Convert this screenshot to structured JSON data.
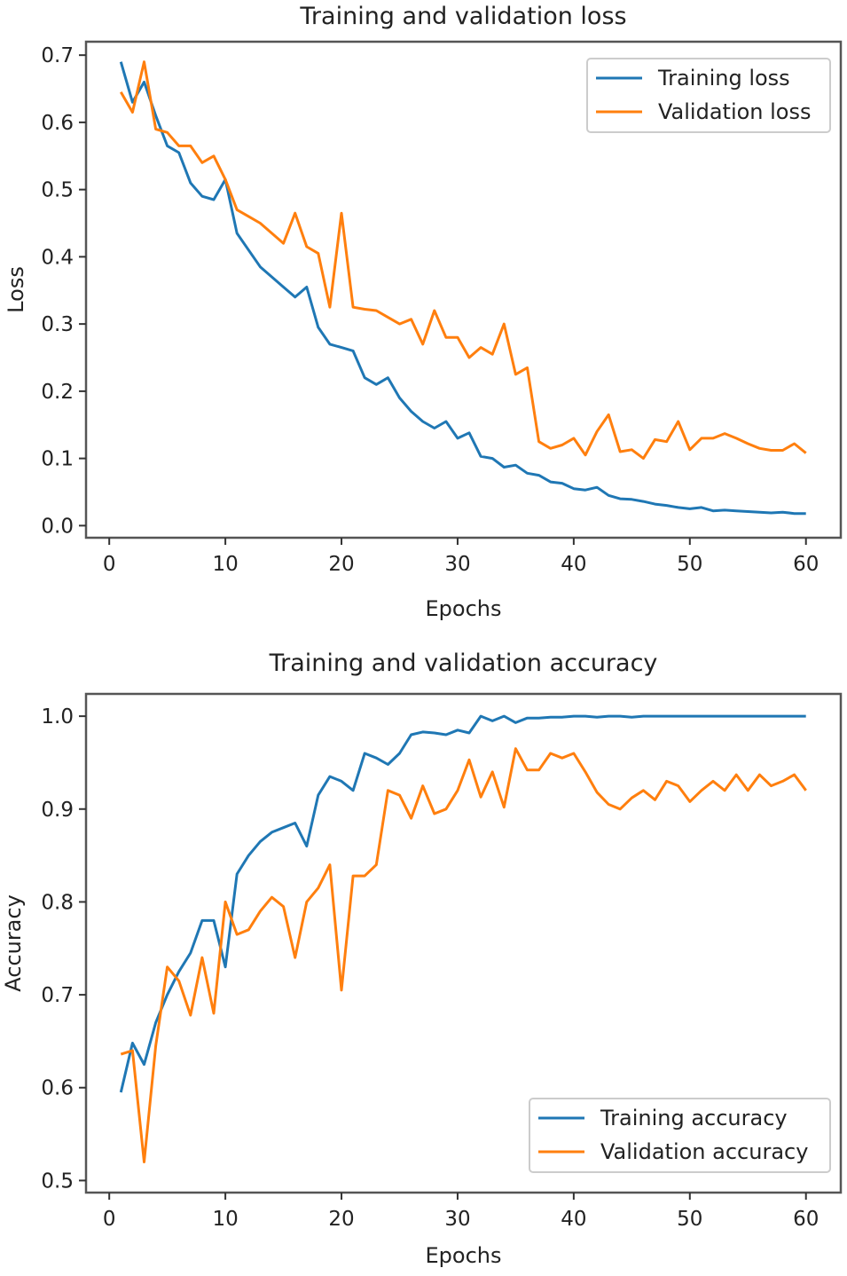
{
  "chart_data": [
    {
      "type": "line",
      "title": "Training and validation loss",
      "xlabel": "Epochs",
      "ylabel": "Loss",
      "xlim": [
        -2,
        63
      ],
      "ylim": [
        -0.018,
        0.72
      ],
      "xticks": [
        0,
        10,
        20,
        30,
        40,
        50,
        60
      ],
      "yticks": [
        0.0,
        0.1,
        0.2,
        0.3,
        0.4,
        0.5,
        0.6,
        0.7
      ],
      "ytick_labels": [
        "0.0",
        "0.1",
        "0.2",
        "0.3",
        "0.4",
        "0.5",
        "0.6",
        "0.7"
      ],
      "grid": false,
      "legend": "top-right",
      "x": [
        1,
        2,
        3,
        4,
        5,
        6,
        7,
        8,
        9,
        10,
        11,
        12,
        13,
        14,
        15,
        16,
        17,
        18,
        19,
        20,
        21,
        22,
        23,
        24,
        25,
        26,
        27,
        28,
        29,
        30,
        31,
        32,
        33,
        34,
        35,
        36,
        37,
        38,
        39,
        40,
        41,
        42,
        43,
        44,
        45,
        46,
        47,
        48,
        49,
        50,
        51,
        52,
        53,
        54,
        55,
        56,
        57,
        58,
        59,
        60
      ],
      "series": [
        {
          "name": "Training loss",
          "color": "#1f77b4",
          "values": [
            0.69,
            0.63,
            0.66,
            0.61,
            0.565,
            0.555,
            0.51,
            0.49,
            0.485,
            0.515,
            0.435,
            0.41,
            0.385,
            0.37,
            0.355,
            0.34,
            0.355,
            0.295,
            0.27,
            0.265,
            0.26,
            0.22,
            0.21,
            0.22,
            0.19,
            0.17,
            0.155,
            0.145,
            0.155,
            0.13,
            0.138,
            0.103,
            0.1,
            0.087,
            0.09,
            0.078,
            0.075,
            0.065,
            0.063,
            0.055,
            0.053,
            0.057,
            0.045,
            0.04,
            0.039,
            0.036,
            0.032,
            0.03,
            0.027,
            0.025,
            0.027,
            0.022,
            0.023,
            0.022,
            0.021,
            0.02,
            0.019,
            0.02,
            0.018,
            0.018
          ]
        },
        {
          "name": "Validation loss",
          "color": "#ff7f0e",
          "values": [
            0.645,
            0.615,
            0.69,
            0.59,
            0.585,
            0.565,
            0.565,
            0.54,
            0.55,
            0.515,
            0.47,
            0.46,
            0.45,
            0.435,
            0.42,
            0.465,
            0.415,
            0.405,
            0.325,
            0.465,
            0.325,
            0.322,
            0.32,
            0.31,
            0.3,
            0.307,
            0.27,
            0.32,
            0.28,
            0.28,
            0.25,
            0.265,
            0.255,
            0.3,
            0.225,
            0.235,
            0.125,
            0.115,
            0.12,
            0.13,
            0.105,
            0.14,
            0.165,
            0.11,
            0.113,
            0.1,
            0.128,
            0.125,
            0.155,
            0.113,
            0.13,
            0.13,
            0.137,
            0.13,
            0.122,
            0.115,
            0.112,
            0.112,
            0.122,
            0.108
          ]
        }
      ]
    },
    {
      "type": "line",
      "title": "Training and validation accuracy",
      "xlabel": "Epochs",
      "ylabel": "Accuracy",
      "xlim": [
        -2,
        63
      ],
      "ylim": [
        0.487,
        1.024
      ],
      "xticks": [
        0,
        10,
        20,
        30,
        40,
        50,
        60
      ],
      "yticks": [
        0.5,
        0.6,
        0.7,
        0.8,
        0.9,
        1.0
      ],
      "ytick_labels": [
        "0.5",
        "0.6",
        "0.7",
        "0.8",
        "0.9",
        "1.0"
      ],
      "grid": false,
      "legend": "bottom-right",
      "x": [
        1,
        2,
        3,
        4,
        5,
        6,
        7,
        8,
        9,
        10,
        11,
        12,
        13,
        14,
        15,
        16,
        17,
        18,
        19,
        20,
        21,
        22,
        23,
        24,
        25,
        26,
        27,
        28,
        29,
        30,
        31,
        32,
        33,
        34,
        35,
        36,
        37,
        38,
        39,
        40,
        41,
        42,
        43,
        44,
        45,
        46,
        47,
        48,
        49,
        50,
        51,
        52,
        53,
        54,
        55,
        56,
        57,
        58,
        59,
        60
      ],
      "series": [
        {
          "name": "Training accuracy",
          "color": "#1f77b4",
          "values": [
            0.595,
            0.648,
            0.625,
            0.67,
            0.7,
            0.725,
            0.745,
            0.78,
            0.78,
            0.73,
            0.83,
            0.85,
            0.865,
            0.875,
            0.88,
            0.885,
            0.86,
            0.915,
            0.935,
            0.93,
            0.92,
            0.96,
            0.955,
            0.948,
            0.96,
            0.98,
            0.983,
            0.982,
            0.98,
            0.985,
            0.982,
            1.0,
            0.995,
            1.0,
            0.993,
            0.998,
            0.998,
            0.999,
            0.999,
            1.0,
            1.0,
            0.999,
            1.0,
            1.0,
            0.999,
            1.0,
            1.0,
            1.0,
            1.0,
            1.0,
            1.0,
            1.0,
            1.0,
            1.0,
            1.0,
            1.0,
            1.0,
            1.0,
            1.0,
            1.0
          ]
        },
        {
          "name": "Validation accuracy",
          "color": "#ff7f0e",
          "values": [
            0.636,
            0.64,
            0.52,
            0.645,
            0.73,
            0.715,
            0.678,
            0.74,
            0.68,
            0.8,
            0.765,
            0.77,
            0.79,
            0.805,
            0.795,
            0.74,
            0.8,
            0.815,
            0.84,
            0.705,
            0.828,
            0.828,
            0.84,
            0.92,
            0.915,
            0.89,
            0.925,
            0.895,
            0.9,
            0.92,
            0.953,
            0.913,
            0.94,
            0.902,
            0.965,
            0.942,
            0.942,
            0.96,
            0.955,
            0.96,
            0.94,
            0.918,
            0.905,
            0.9,
            0.912,
            0.92,
            0.91,
            0.93,
            0.925,
            0.908,
            0.92,
            0.93,
            0.92,
            0.937,
            0.92,
            0.937,
            0.925,
            0.93,
            0.937,
            0.92
          ]
        }
      ]
    }
  ]
}
